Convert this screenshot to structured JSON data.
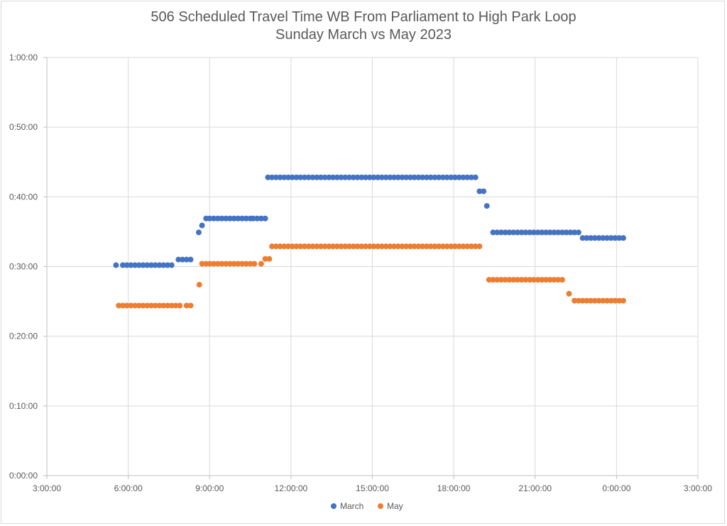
{
  "chart_data": {
    "type": "scatter",
    "title": "506 Scheduled Travel Time WB From Parliament to High Park Loop",
    "subtitle": "Sunday March vs May 2023",
    "xlabel": "",
    "ylabel": "",
    "x_ticks": [
      "3:00:00",
      "6:00:00",
      "9:00:00",
      "12:00:00",
      "15:00:00",
      "18:00:00",
      "21:00:00",
      "0:00:00",
      "3:00:00"
    ],
    "y_ticks": [
      "0:00:00",
      "0:10:00",
      "0:20:00",
      "0:30:00",
      "0:40:00",
      "0:50:00",
      "1:00:00"
    ],
    "x_unit": "time of day (hours after midnight; values above 24 are after midnight of the next day)",
    "y_unit": "minutes",
    "xlim": [
      3,
      27
    ],
    "ylim": [
      0,
      60
    ],
    "grid": true,
    "legend_position": "bottom",
    "series": [
      {
        "name": "March",
        "color": "#4472c4",
        "points": [
          [
            5.55,
            30.2
          ],
          [
            5.8,
            30.2
          ],
          [
            5.95,
            30.2
          ],
          [
            6.1,
            30.2
          ],
          [
            6.25,
            30.2
          ],
          [
            6.4,
            30.2
          ],
          [
            6.55,
            30.2
          ],
          [
            6.7,
            30.2
          ],
          [
            6.85,
            30.2
          ],
          [
            7.0,
            30.2
          ],
          [
            7.15,
            30.2
          ],
          [
            7.3,
            30.2
          ],
          [
            7.45,
            30.2
          ],
          [
            7.6,
            30.2
          ],
          [
            7.85,
            31.0
          ],
          [
            8.0,
            31.0
          ],
          [
            8.15,
            31.0
          ],
          [
            8.3,
            31.0
          ],
          [
            8.6,
            34.9
          ],
          [
            8.72,
            35.9
          ],
          [
            8.87,
            36.9
          ],
          [
            9.0,
            36.9
          ],
          [
            9.15,
            36.9
          ],
          [
            9.3,
            36.9
          ],
          [
            9.45,
            36.9
          ],
          [
            9.6,
            36.9
          ],
          [
            9.75,
            36.9
          ],
          [
            9.9,
            36.9
          ],
          [
            10.05,
            36.9
          ],
          [
            10.2,
            36.9
          ],
          [
            10.35,
            36.9
          ],
          [
            10.5,
            36.9
          ],
          [
            10.6,
            36.9
          ],
          [
            10.75,
            36.9
          ],
          [
            10.9,
            36.9
          ],
          [
            11.05,
            36.9
          ],
          [
            11.15,
            42.8
          ],
          [
            11.3,
            42.8
          ],
          [
            11.45,
            42.8
          ],
          [
            11.6,
            42.8
          ],
          [
            11.75,
            42.8
          ],
          [
            11.9,
            42.8
          ],
          [
            12.05,
            42.8
          ],
          [
            12.2,
            42.8
          ],
          [
            12.35,
            42.8
          ],
          [
            12.5,
            42.8
          ],
          [
            12.65,
            42.8
          ],
          [
            12.8,
            42.8
          ],
          [
            12.95,
            42.8
          ],
          [
            13.1,
            42.8
          ],
          [
            13.25,
            42.8
          ],
          [
            13.4,
            42.8
          ],
          [
            13.55,
            42.8
          ],
          [
            13.7,
            42.8
          ],
          [
            13.85,
            42.8
          ],
          [
            14.0,
            42.8
          ],
          [
            14.15,
            42.8
          ],
          [
            14.3,
            42.8
          ],
          [
            14.45,
            42.8
          ],
          [
            14.6,
            42.8
          ],
          [
            14.75,
            42.8
          ],
          [
            14.9,
            42.8
          ],
          [
            15.05,
            42.8
          ],
          [
            15.2,
            42.8
          ],
          [
            15.35,
            42.8
          ],
          [
            15.5,
            42.8
          ],
          [
            15.65,
            42.8
          ],
          [
            15.8,
            42.8
          ],
          [
            15.95,
            42.8
          ],
          [
            16.1,
            42.8
          ],
          [
            16.25,
            42.8
          ],
          [
            16.4,
            42.8
          ],
          [
            16.55,
            42.8
          ],
          [
            16.7,
            42.8
          ],
          [
            16.85,
            42.8
          ],
          [
            17.0,
            42.8
          ],
          [
            17.15,
            42.8
          ],
          [
            17.3,
            42.8
          ],
          [
            17.45,
            42.8
          ],
          [
            17.6,
            42.8
          ],
          [
            17.75,
            42.8
          ],
          [
            17.9,
            42.8
          ],
          [
            18.05,
            42.8
          ],
          [
            18.2,
            42.8
          ],
          [
            18.35,
            42.8
          ],
          [
            18.5,
            42.8
          ],
          [
            18.65,
            42.8
          ],
          [
            18.8,
            42.8
          ],
          [
            18.95,
            40.8
          ],
          [
            19.1,
            40.8
          ],
          [
            19.22,
            38.7
          ],
          [
            19.45,
            34.9
          ],
          [
            19.6,
            34.9
          ],
          [
            19.75,
            34.9
          ],
          [
            19.9,
            34.9
          ],
          [
            20.05,
            34.9
          ],
          [
            20.2,
            34.9
          ],
          [
            20.35,
            34.9
          ],
          [
            20.5,
            34.9
          ],
          [
            20.65,
            34.9
          ],
          [
            20.8,
            34.9
          ],
          [
            20.95,
            34.9
          ],
          [
            21.1,
            34.9
          ],
          [
            21.25,
            34.9
          ],
          [
            21.4,
            34.9
          ],
          [
            21.55,
            34.9
          ],
          [
            21.7,
            34.9
          ],
          [
            21.85,
            34.9
          ],
          [
            22.0,
            34.9
          ],
          [
            22.15,
            34.9
          ],
          [
            22.3,
            34.9
          ],
          [
            22.45,
            34.9
          ],
          [
            22.6,
            34.9
          ],
          [
            22.75,
            34.1
          ],
          [
            22.9,
            34.1
          ],
          [
            23.05,
            34.1
          ],
          [
            23.2,
            34.1
          ],
          [
            23.35,
            34.1
          ],
          [
            23.5,
            34.1
          ],
          [
            23.65,
            34.1
          ],
          [
            23.8,
            34.1
          ],
          [
            23.95,
            34.1
          ],
          [
            24.1,
            34.1
          ],
          [
            24.25,
            34.1
          ]
        ]
      },
      {
        "name": "May",
        "color": "#ed7d31",
        "points": [
          [
            5.65,
            24.4
          ],
          [
            5.8,
            24.4
          ],
          [
            5.95,
            24.4
          ],
          [
            6.1,
            24.4
          ],
          [
            6.25,
            24.4
          ],
          [
            6.4,
            24.4
          ],
          [
            6.55,
            24.4
          ],
          [
            6.7,
            24.4
          ],
          [
            6.85,
            24.4
          ],
          [
            7.0,
            24.4
          ],
          [
            7.15,
            24.4
          ],
          [
            7.3,
            24.4
          ],
          [
            7.45,
            24.4
          ],
          [
            7.6,
            24.4
          ],
          [
            7.75,
            24.4
          ],
          [
            7.9,
            24.4
          ],
          [
            8.15,
            24.4
          ],
          [
            8.3,
            24.4
          ],
          [
            8.62,
            27.4
          ],
          [
            8.72,
            30.4
          ],
          [
            8.87,
            30.4
          ],
          [
            9.0,
            30.4
          ],
          [
            9.15,
            30.4
          ],
          [
            9.3,
            30.4
          ],
          [
            9.45,
            30.4
          ],
          [
            9.6,
            30.4
          ],
          [
            9.75,
            30.4
          ],
          [
            9.9,
            30.4
          ],
          [
            10.05,
            30.4
          ],
          [
            10.2,
            30.4
          ],
          [
            10.35,
            30.4
          ],
          [
            10.5,
            30.4
          ],
          [
            10.65,
            30.4
          ],
          [
            10.9,
            30.4
          ],
          [
            11.05,
            31.1
          ],
          [
            11.2,
            31.1
          ],
          [
            11.3,
            32.9
          ],
          [
            11.45,
            32.9
          ],
          [
            11.6,
            32.9
          ],
          [
            11.75,
            32.9
          ],
          [
            11.9,
            32.9
          ],
          [
            12.05,
            32.9
          ],
          [
            12.2,
            32.9
          ],
          [
            12.35,
            32.9
          ],
          [
            12.5,
            32.9
          ],
          [
            12.65,
            32.9
          ],
          [
            12.8,
            32.9
          ],
          [
            12.95,
            32.9
          ],
          [
            13.1,
            32.9
          ],
          [
            13.25,
            32.9
          ],
          [
            13.4,
            32.9
          ],
          [
            13.55,
            32.9
          ],
          [
            13.7,
            32.9
          ],
          [
            13.85,
            32.9
          ],
          [
            14.0,
            32.9
          ],
          [
            14.15,
            32.9
          ],
          [
            14.3,
            32.9
          ],
          [
            14.45,
            32.9
          ],
          [
            14.6,
            32.9
          ],
          [
            14.75,
            32.9
          ],
          [
            14.9,
            32.9
          ],
          [
            15.05,
            32.9
          ],
          [
            15.2,
            32.9
          ],
          [
            15.35,
            32.9
          ],
          [
            15.5,
            32.9
          ],
          [
            15.65,
            32.9
          ],
          [
            15.8,
            32.9
          ],
          [
            15.95,
            32.9
          ],
          [
            16.1,
            32.9
          ],
          [
            16.25,
            32.9
          ],
          [
            16.4,
            32.9
          ],
          [
            16.55,
            32.9
          ],
          [
            16.7,
            32.9
          ],
          [
            16.85,
            32.9
          ],
          [
            17.0,
            32.9
          ],
          [
            17.15,
            32.9
          ],
          [
            17.3,
            32.9
          ],
          [
            17.45,
            32.9
          ],
          [
            17.6,
            32.9
          ],
          [
            17.75,
            32.9
          ],
          [
            17.9,
            32.9
          ],
          [
            18.05,
            32.9
          ],
          [
            18.2,
            32.9
          ],
          [
            18.35,
            32.9
          ],
          [
            18.5,
            32.9
          ],
          [
            18.65,
            32.9
          ],
          [
            18.8,
            32.9
          ],
          [
            18.95,
            32.9
          ],
          [
            19.3,
            28.1
          ],
          [
            19.45,
            28.1
          ],
          [
            19.6,
            28.1
          ],
          [
            19.75,
            28.1
          ],
          [
            19.9,
            28.1
          ],
          [
            20.05,
            28.1
          ],
          [
            20.2,
            28.1
          ],
          [
            20.35,
            28.1
          ],
          [
            20.5,
            28.1
          ],
          [
            20.65,
            28.1
          ],
          [
            20.8,
            28.1
          ],
          [
            20.95,
            28.1
          ],
          [
            21.1,
            28.1
          ],
          [
            21.25,
            28.1
          ],
          [
            21.4,
            28.1
          ],
          [
            21.55,
            28.1
          ],
          [
            21.7,
            28.1
          ],
          [
            21.85,
            28.1
          ],
          [
            22.0,
            28.1
          ],
          [
            22.25,
            26.1
          ],
          [
            22.45,
            25.1
          ],
          [
            22.6,
            25.1
          ],
          [
            22.75,
            25.1
          ],
          [
            22.9,
            25.1
          ],
          [
            23.05,
            25.1
          ],
          [
            23.2,
            25.1
          ],
          [
            23.35,
            25.1
          ],
          [
            23.5,
            25.1
          ],
          [
            23.65,
            25.1
          ],
          [
            23.8,
            25.1
          ],
          [
            23.95,
            25.1
          ],
          [
            24.1,
            25.1
          ],
          [
            24.25,
            25.1
          ]
        ]
      }
    ]
  }
}
